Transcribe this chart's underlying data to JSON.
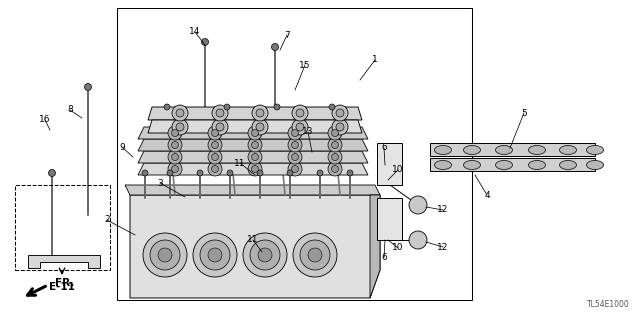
{
  "bg": "#ffffff",
  "diagram_code": "TL54E1000",
  "fr_label": "FR.",
  "e11_label": "E-11",
  "label_color": "#111111",
  "line_color": "#000000",
  "part_color": "#d4d4d4",
  "part_edge": "#333333"
}
